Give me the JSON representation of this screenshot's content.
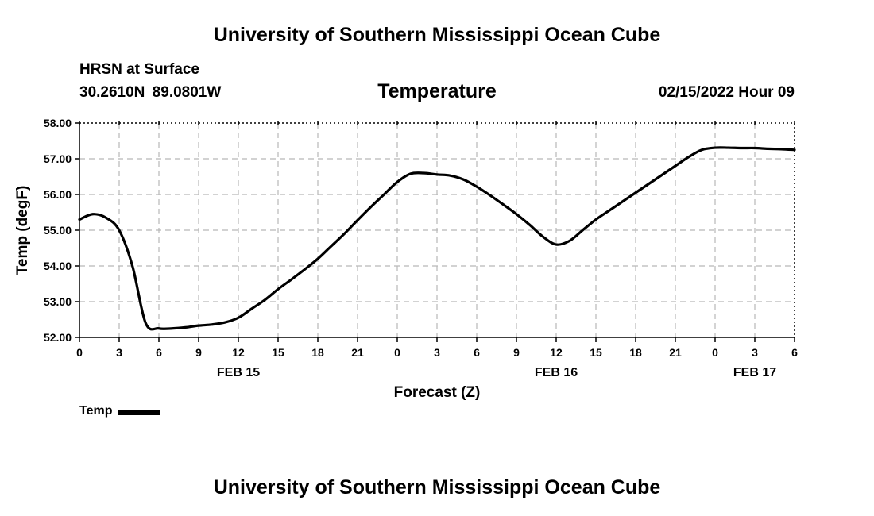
{
  "header": {
    "title": "University of Southern Mississippi Ocean Cube",
    "station": "HRSN at Surface",
    "coords": "30.2610N  89.0801W",
    "parameter": "Temperature",
    "datetime": "02/15/2022 Hour 09"
  },
  "footer": {
    "title": "University of Southern Mississippi Ocean Cube"
  },
  "legend": {
    "label": "Temp",
    "color": "#000000"
  },
  "chart_data": {
    "type": "line",
    "title": "Temperature",
    "xlabel": "Forecast (Z)",
    "ylabel": "Temp (degF)",
    "xlim": [
      0,
      54
    ],
    "ylim": [
      52.0,
      58.0
    ],
    "grid": true,
    "x_tick_values": [
      0,
      3,
      6,
      9,
      12,
      15,
      18,
      21,
      24,
      27,
      30,
      33,
      36,
      39,
      42,
      45,
      48,
      51,
      54
    ],
    "x_tick_labels": [
      "0",
      "3",
      "6",
      "9",
      "12",
      "15",
      "18",
      "21",
      "0",
      "3",
      "6",
      "9",
      "12",
      "15",
      "18",
      "21",
      "0",
      "3",
      "6"
    ],
    "y_tick_values": [
      52,
      53,
      54,
      55,
      56,
      57,
      58
    ],
    "y_tick_labels": [
      "52.00",
      "53.00",
      "54.00",
      "55.00",
      "56.00",
      "57.00",
      "58.00"
    ],
    "date_labels": [
      {
        "x": 12,
        "label": "FEB 15"
      },
      {
        "x": 36,
        "label": "FEB 16"
      },
      {
        "x": 51,
        "label": "FEB 17"
      }
    ],
    "series": [
      {
        "name": "Temp",
        "color": "#000000",
        "x": [
          0,
          1,
          2,
          3,
          4,
          5,
          6,
          7,
          8,
          9,
          10,
          11,
          12,
          13,
          14,
          15,
          16,
          17,
          18,
          19,
          20,
          21,
          22,
          23,
          24,
          25,
          26,
          27,
          28,
          29,
          30,
          31,
          32,
          33,
          34,
          35,
          36,
          37,
          38,
          39,
          40,
          41,
          42,
          43,
          44,
          45,
          46,
          47,
          48,
          49,
          50,
          51,
          52,
          53,
          54
        ],
        "values": [
          55.3,
          55.45,
          55.35,
          55.0,
          54.0,
          52.4,
          52.25,
          52.25,
          52.28,
          52.33,
          52.36,
          52.42,
          52.55,
          52.8,
          53.05,
          53.35,
          53.62,
          53.9,
          54.2,
          54.55,
          54.9,
          55.28,
          55.65,
          56.0,
          56.35,
          56.58,
          56.6,
          56.56,
          56.53,
          56.42,
          56.22,
          55.98,
          55.72,
          55.45,
          55.15,
          54.82,
          54.6,
          54.7,
          55.0,
          55.3,
          55.55,
          55.8,
          56.05,
          56.3,
          56.55,
          56.8,
          57.05,
          57.25,
          57.31,
          57.31,
          57.3,
          57.3,
          57.28,
          57.27,
          57.25
        ]
      }
    ]
  }
}
